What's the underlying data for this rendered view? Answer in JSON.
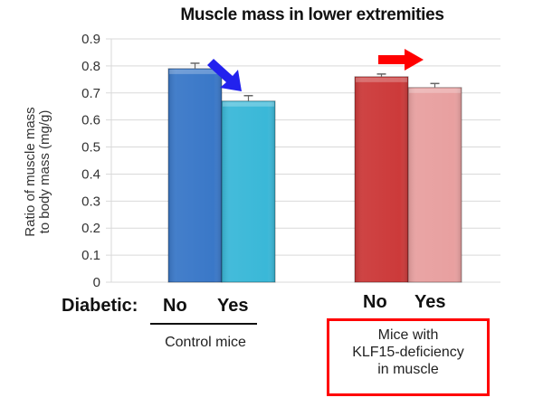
{
  "chart_data": {
    "type": "bar",
    "title": "Muscle mass in lower extremities",
    "xlabel": "",
    "ylabel": "Ratio of muscle mass to body mass  (mg/g)",
    "ylabel_lines": [
      "Ratio of muscle mass",
      "to body mass  (mg/g)"
    ],
    "ylim": [
      0,
      0.9
    ],
    "yticks": [
      "0",
      "0.1",
      "0.2",
      "0.3",
      "0.4",
      "0.5",
      "0.6",
      "0.7",
      "0.8",
      "0.9"
    ],
    "grid": true,
    "categories": [
      "No",
      "Yes",
      "No",
      "Yes"
    ],
    "category_prefix": "Diabetic:",
    "groups": [
      {
        "name": "Control mice",
        "lines": [
          "Control mice"
        ],
        "highlight": false
      },
      {
        "name": "Mice with KLF15-deficiency in muscle",
        "lines": [
          "Mice with",
          "KLF15-deficiency",
          "in muscle"
        ],
        "highlight": true,
        "highlight_color": "#ff0000"
      }
    ],
    "bars": [
      {
        "group": 0,
        "label": "No",
        "value": 0.79,
        "error": 0.02,
        "color": "#3a78c8"
      },
      {
        "group": 0,
        "label": "Yes",
        "value": 0.67,
        "error": 0.02,
        "color": "#3ab8d8"
      },
      {
        "group": 1,
        "label": "No",
        "value": 0.76,
        "error": 0.01,
        "color": "#cc3a3a"
      },
      {
        "group": 1,
        "label": "Yes",
        "value": 0.72,
        "error": 0.015,
        "color": "#e8a0a0"
      }
    ],
    "annotations": [
      {
        "type": "arrow",
        "direction": "down-right",
        "meaning": "decrease",
        "group": 0,
        "color": "#2222ee"
      },
      {
        "type": "arrow",
        "direction": "right",
        "meaning": "no change",
        "group": 1,
        "color": "#ff0000"
      }
    ]
  }
}
